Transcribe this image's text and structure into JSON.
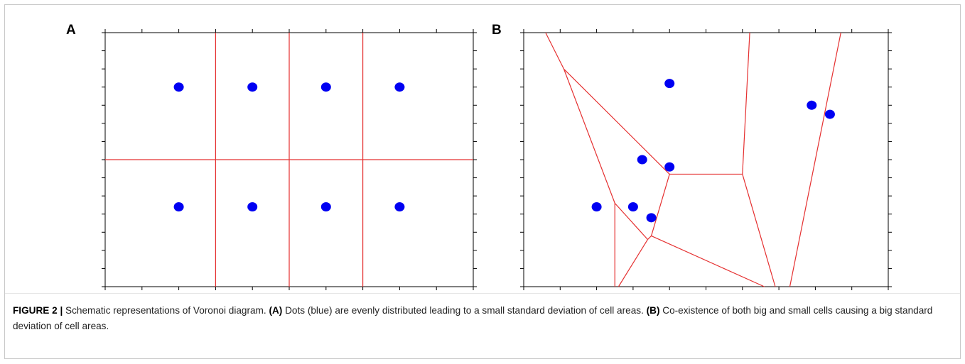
{
  "figure": {
    "panels": [
      {
        "label": "A",
        "cell_lines": [
          [
            [
              3,
              0
            ],
            [
              3,
              7
            ]
          ],
          [
            [
              5,
              0
            ],
            [
              5,
              7
            ]
          ],
          [
            [
              7,
              0
            ],
            [
              7,
              7
            ]
          ],
          [
            [
              0,
              3.5
            ],
            [
              10,
              3.5
            ]
          ]
        ],
        "points": [
          [
            2,
            5.5
          ],
          [
            4,
            5.5
          ],
          [
            6,
            5.5
          ],
          [
            8,
            5.5
          ],
          [
            2,
            2.2
          ],
          [
            4,
            2.2
          ],
          [
            6,
            2.2
          ],
          [
            8,
            2.2
          ]
        ]
      },
      {
        "label": "B",
        "cell_lines": [
          [
            [
              0.6,
              7
            ],
            [
              1.1,
              6
            ]
          ],
          [
            [
              1.1,
              6
            ],
            [
              4,
              3.1
            ]
          ],
          [
            [
              1.1,
              6
            ],
            [
              2.5,
              2.3
            ]
          ],
          [
            [
              4,
              3.1
            ],
            [
              6,
              3.1
            ]
          ],
          [
            [
              6,
              3.1
            ],
            [
              6.2,
              7
            ]
          ],
          [
            [
              4,
              3.1
            ],
            [
              3.5,
              1.4
            ]
          ],
          [
            [
              2.5,
              2.3
            ],
            [
              3.4,
              1.3
            ]
          ],
          [
            [
              3.4,
              1.3
            ],
            [
              3.5,
              1.4
            ]
          ],
          [
            [
              2.5,
              2.3
            ],
            [
              2.5,
              0
            ]
          ],
          [
            [
              3.4,
              1.3
            ],
            [
              2.6,
              0
            ]
          ],
          [
            [
              3.5,
              1.4
            ],
            [
              6.6,
              0
            ]
          ],
          [
            [
              6,
              3.1
            ],
            [
              6.9,
              0
            ]
          ],
          [
            [
              8.7,
              7
            ],
            [
              7.3,
              0
            ]
          ]
        ],
        "points": [
          [
            4,
            5.6
          ],
          [
            7.9,
            5.0
          ],
          [
            8.4,
            4.75
          ],
          [
            3.25,
            3.5
          ],
          [
            4,
            3.3
          ],
          [
            2,
            2.2
          ],
          [
            3,
            2.2
          ],
          [
            3.5,
            1.9
          ]
        ]
      }
    ],
    "caption": {
      "label": "FIGURE 2 |",
      "part1": " Schematic representations of Voronoi diagram. ",
      "a_label": "(A)",
      "part2": " Dots (blue) are evenly distributed leading to a small standard deviation of cell areas. ",
      "b_label": "(B)",
      "part3": " Co-existence of both big and small cells causing a big standard deviation of cell areas."
    }
  },
  "colors": {
    "point": "#0000f2",
    "line": "#e53030",
    "axis": "#000000"
  }
}
